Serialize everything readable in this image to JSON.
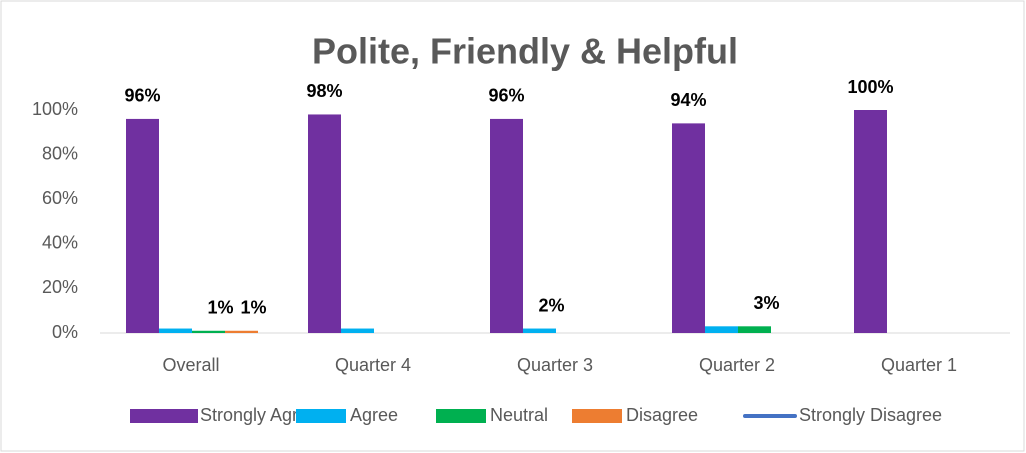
{
  "chart_data": {
    "type": "bar",
    "title": "Polite, Friendly & Helpful",
    "categories": [
      "Overall",
      "Quarter 4",
      "Quarter 3",
      "Quarter 2",
      "Quarter 1"
    ],
    "series": [
      {
        "name": "Strongly Agree",
        "color": "#7030a0",
        "values": [
          96,
          98,
          96,
          94,
          100
        ],
        "value_labels": [
          "96%",
          "98%",
          "96%",
          "94%",
          "100%"
        ]
      },
      {
        "name": "Agree",
        "color": "#00b0f0",
        "values": [
          2,
          2,
          2,
          3,
          0
        ],
        "value_labels": [
          null,
          null,
          "2%",
          null,
          null
        ]
      },
      {
        "name": "Neutral",
        "color": "#00b050",
        "values": [
          1,
          0,
          0,
          3,
          0
        ],
        "value_labels": [
          "1%",
          null,
          null,
          "3%",
          null
        ]
      },
      {
        "name": "Disagree",
        "color": "#ed7d31",
        "values": [
          1,
          0,
          0,
          0,
          0
        ],
        "value_labels": [
          "1%",
          null,
          null,
          null,
          null
        ]
      },
      {
        "name": "Strongly Disagree",
        "color": "#4472c4",
        "values": [
          0,
          0,
          0,
          0,
          0
        ]
      }
    ],
    "ylim": [
      0,
      100
    ],
    "yticks": [
      {
        "value": 0,
        "label": "0%"
      },
      {
        "value": 20,
        "label": "20%"
      },
      {
        "value": 40,
        "label": "40%"
      },
      {
        "value": 60,
        "label": "60%"
      },
      {
        "value": 80,
        "label": "80%"
      },
      {
        "value": 100,
        "label": "100%"
      }
    ],
    "grid": false,
    "legend": "bottom"
  }
}
